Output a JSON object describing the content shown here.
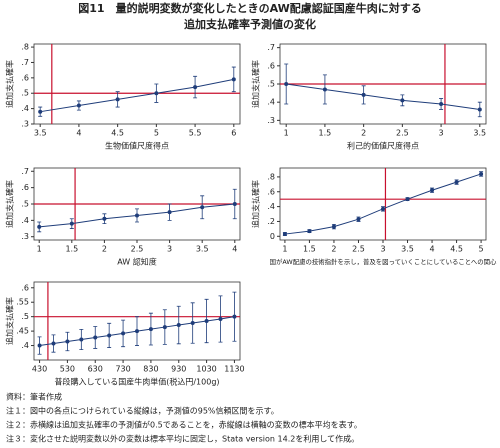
{
  "title_lines": [
    "図11　量的説明変数が変化したときのAW配慮認証国産牛肉に対する",
    "追加支払確率予測値の変化"
  ],
  "chart_data": [
    {
      "type": "line",
      "ylabel": "追加支払確率",
      "xlabel": "生物価値尺度得点",
      "color": "#1f3d7a",
      "ref_color": "#c8102e",
      "x": [
        3.5,
        4,
        4.5,
        5,
        5.5,
        6
      ],
      "values": [
        0.38,
        0.42,
        0.46,
        0.5,
        0.54,
        0.59
      ],
      "errors": [
        0.03,
        0.03,
        0.05,
        0.06,
        0.07,
        0.08
      ],
      "xlim": [
        3.42,
        6.08
      ],
      "ylim": [
        0.3,
        0.82
      ],
      "xticks": [
        3.5,
        4,
        4.5,
        5,
        5.5,
        6
      ],
      "yticks": [
        {
          "value": 0.3,
          "label": ".3"
        },
        {
          "value": 0.4,
          "label": ".4"
        },
        {
          "value": 0.5,
          "label": ".5"
        },
        {
          "value": 0.6,
          "label": ".6"
        },
        {
          "value": 0.7,
          "label": ".7"
        },
        {
          "value": 0.8,
          "label": ".8"
        }
      ],
      "hline": 0.5,
      "vline": 3.65
    },
    {
      "type": "line",
      "ylabel": "追加支払確率",
      "xlabel": "利己的価値尺度得点",
      "color": "#1f3d7a",
      "ref_color": "#c8102e",
      "x": [
        1,
        1.5,
        2,
        2.5,
        3,
        3.5
      ],
      "values": [
        0.5,
        0.47,
        0.44,
        0.41,
        0.39,
        0.36
      ],
      "errors": [
        0.11,
        0.08,
        0.05,
        0.03,
        0.03,
        0.04
      ],
      "xlim": [
        0.92,
        3.58
      ],
      "ylim": [
        0.28,
        0.72
      ],
      "xticks": [
        1,
        1.5,
        2,
        2.5,
        3,
        3.5
      ],
      "yticks": [
        {
          "value": 0.3,
          "label": ".3"
        },
        {
          "value": 0.4,
          "label": ".4"
        },
        {
          "value": 0.5,
          "label": ".5"
        },
        {
          "value": 0.6,
          "label": ".6"
        },
        {
          "value": 0.7,
          "label": ".7"
        }
      ],
      "hline": 0.5,
      "vline": 3.05
    },
    {
      "type": "line",
      "ylabel": "追加支払確率",
      "xlabel": "AW 認知度",
      "color": "#1f3d7a",
      "ref_color": "#c8102e",
      "x": [
        1,
        1.5,
        2,
        2.5,
        3,
        3.5,
        4
      ],
      "values": [
        0.36,
        0.38,
        0.41,
        0.43,
        0.45,
        0.48,
        0.5
      ],
      "errors": [
        0.03,
        0.03,
        0.03,
        0.04,
        0.05,
        0.07,
        0.09
      ],
      "xlim": [
        0.92,
        4.08
      ],
      "ylim": [
        0.28,
        0.72
      ],
      "xticks": [
        1,
        1.5,
        2,
        2.5,
        3,
        3.5,
        4
      ],
      "yticks": [
        {
          "value": 0.3,
          "label": ".3"
        },
        {
          "value": 0.4,
          "label": ".4"
        },
        {
          "value": 0.5,
          "label": ".5"
        },
        {
          "value": 0.6,
          "label": ".6"
        },
        {
          "value": 0.7,
          "label": ".7"
        }
      ],
      "hline": 0.5,
      "vline": 1.55
    },
    {
      "type": "line",
      "ylabel": "追加支払確率",
      "xlabel": "国がAW配慮の技術指針を示し，普及を図っていくことにしていることへの関心",
      "color": "#1f3d7a",
      "ref_color": "#c8102e",
      "x": [
        1,
        1.5,
        2,
        2.5,
        3,
        3.5,
        4,
        4.5,
        5
      ],
      "values": [
        0.03,
        0.07,
        0.13,
        0.23,
        0.37,
        0.5,
        0.62,
        0.73,
        0.84
      ],
      "errors": [
        0.02,
        0.02,
        0.03,
        0.03,
        0.03,
        0.02,
        0.03,
        0.03,
        0.03
      ],
      "xlim": [
        0.9,
        5.1
      ],
      "ylim": [
        -0.05,
        0.92
      ],
      "xticks": [
        1,
        1.5,
        2,
        2.5,
        3,
        3.5,
        4,
        4.5,
        5
      ],
      "yticks": [
        0,
        {
          "value": 0.2,
          "label": ".2"
        },
        {
          "value": 0.4,
          "label": ".4"
        },
        {
          "value": 0.6,
          "label": ".6"
        },
        {
          "value": 0.8,
          "label": ".8"
        }
      ],
      "hline": 0.5,
      "vline": 3.05
    },
    {
      "type": "line",
      "ylabel": "追加支払確率",
      "xlabel": "普段購入している国産牛肉単価(税込円/100g)",
      "color": "#1f3d7a",
      "ref_color": "#c8102e",
      "x": [
        430,
        480,
        530,
        580,
        630,
        680,
        730,
        780,
        830,
        880,
        930,
        980,
        1030,
        1080,
        1130
      ],
      "values": [
        0.4,
        0.407,
        0.414,
        0.421,
        0.428,
        0.435,
        0.442,
        0.45,
        0.457,
        0.464,
        0.471,
        0.478,
        0.485,
        0.492,
        0.5
      ],
      "errors": [
        0.03,
        0.03,
        0.032,
        0.035,
        0.038,
        0.042,
        0.046,
        0.05,
        0.055,
        0.06,
        0.065,
        0.07,
        0.075,
        0.08,
        0.085
      ],
      "xlim": [
        410,
        1150
      ],
      "ylim": [
        0.35,
        0.62
      ],
      "xticks": [
        430,
        530,
        630,
        730,
        830,
        930,
        1030,
        1130
      ],
      "yticks": [
        {
          "value": 0.4,
          "label": ".4"
        },
        {
          "value": 0.45,
          "label": ".45"
        },
        {
          "value": 0.5,
          "label": ".5"
        },
        {
          "value": 0.55,
          "label": ".55"
        },
        {
          "value": 0.6,
          "label": ".6"
        }
      ],
      "hline": 0.5,
      "vline": 460
    }
  ],
  "notes": [
    "資料：筆者作成",
    "注１：図中の各点につけられている縦線は，予測値の95%信頼区間を示す。",
    "注２：赤横線は追加支払確率の予測値が0.5であることを，赤縦線は横軸の変数の標本平均を表す。",
    "注３：変化させた説明変数以外の変数は標本平均に固定し，Stata version 14.2を利用して作成。"
  ]
}
